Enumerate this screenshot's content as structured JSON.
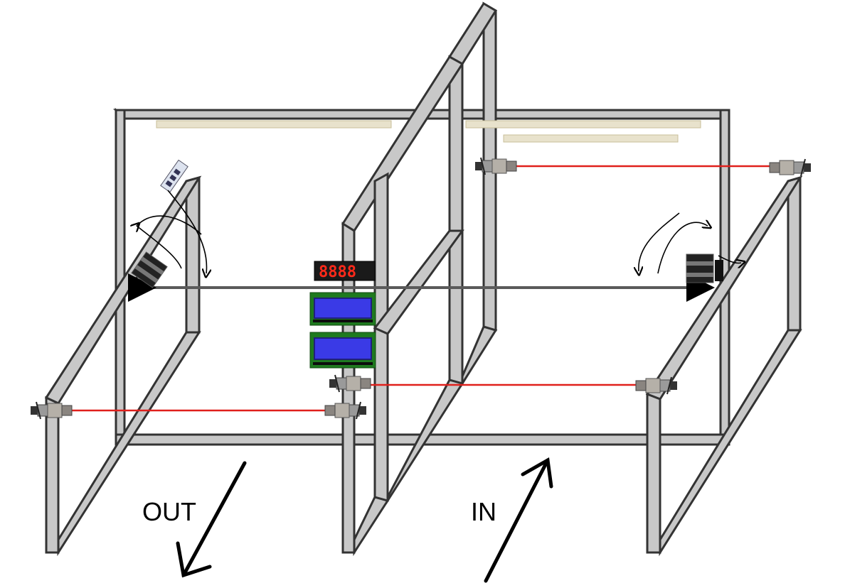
{
  "labels": {
    "out": "OUT",
    "in": "IN"
  },
  "display": {
    "seven_segment": "8888"
  },
  "colors": {
    "frame": "#c8c8c8",
    "laser": "#e0201c",
    "lcd_screen": "#3a3ae6",
    "lcd_board": "#1f7a1f",
    "segment_on": "#ff2a1a"
  },
  "icons": [
    "laser-sensor-icon",
    "stepper-motor-icon",
    "led-strip-icon",
    "lcd-display-icon",
    "seven-segment-display-icon",
    "rotation-arrow-icon"
  ]
}
